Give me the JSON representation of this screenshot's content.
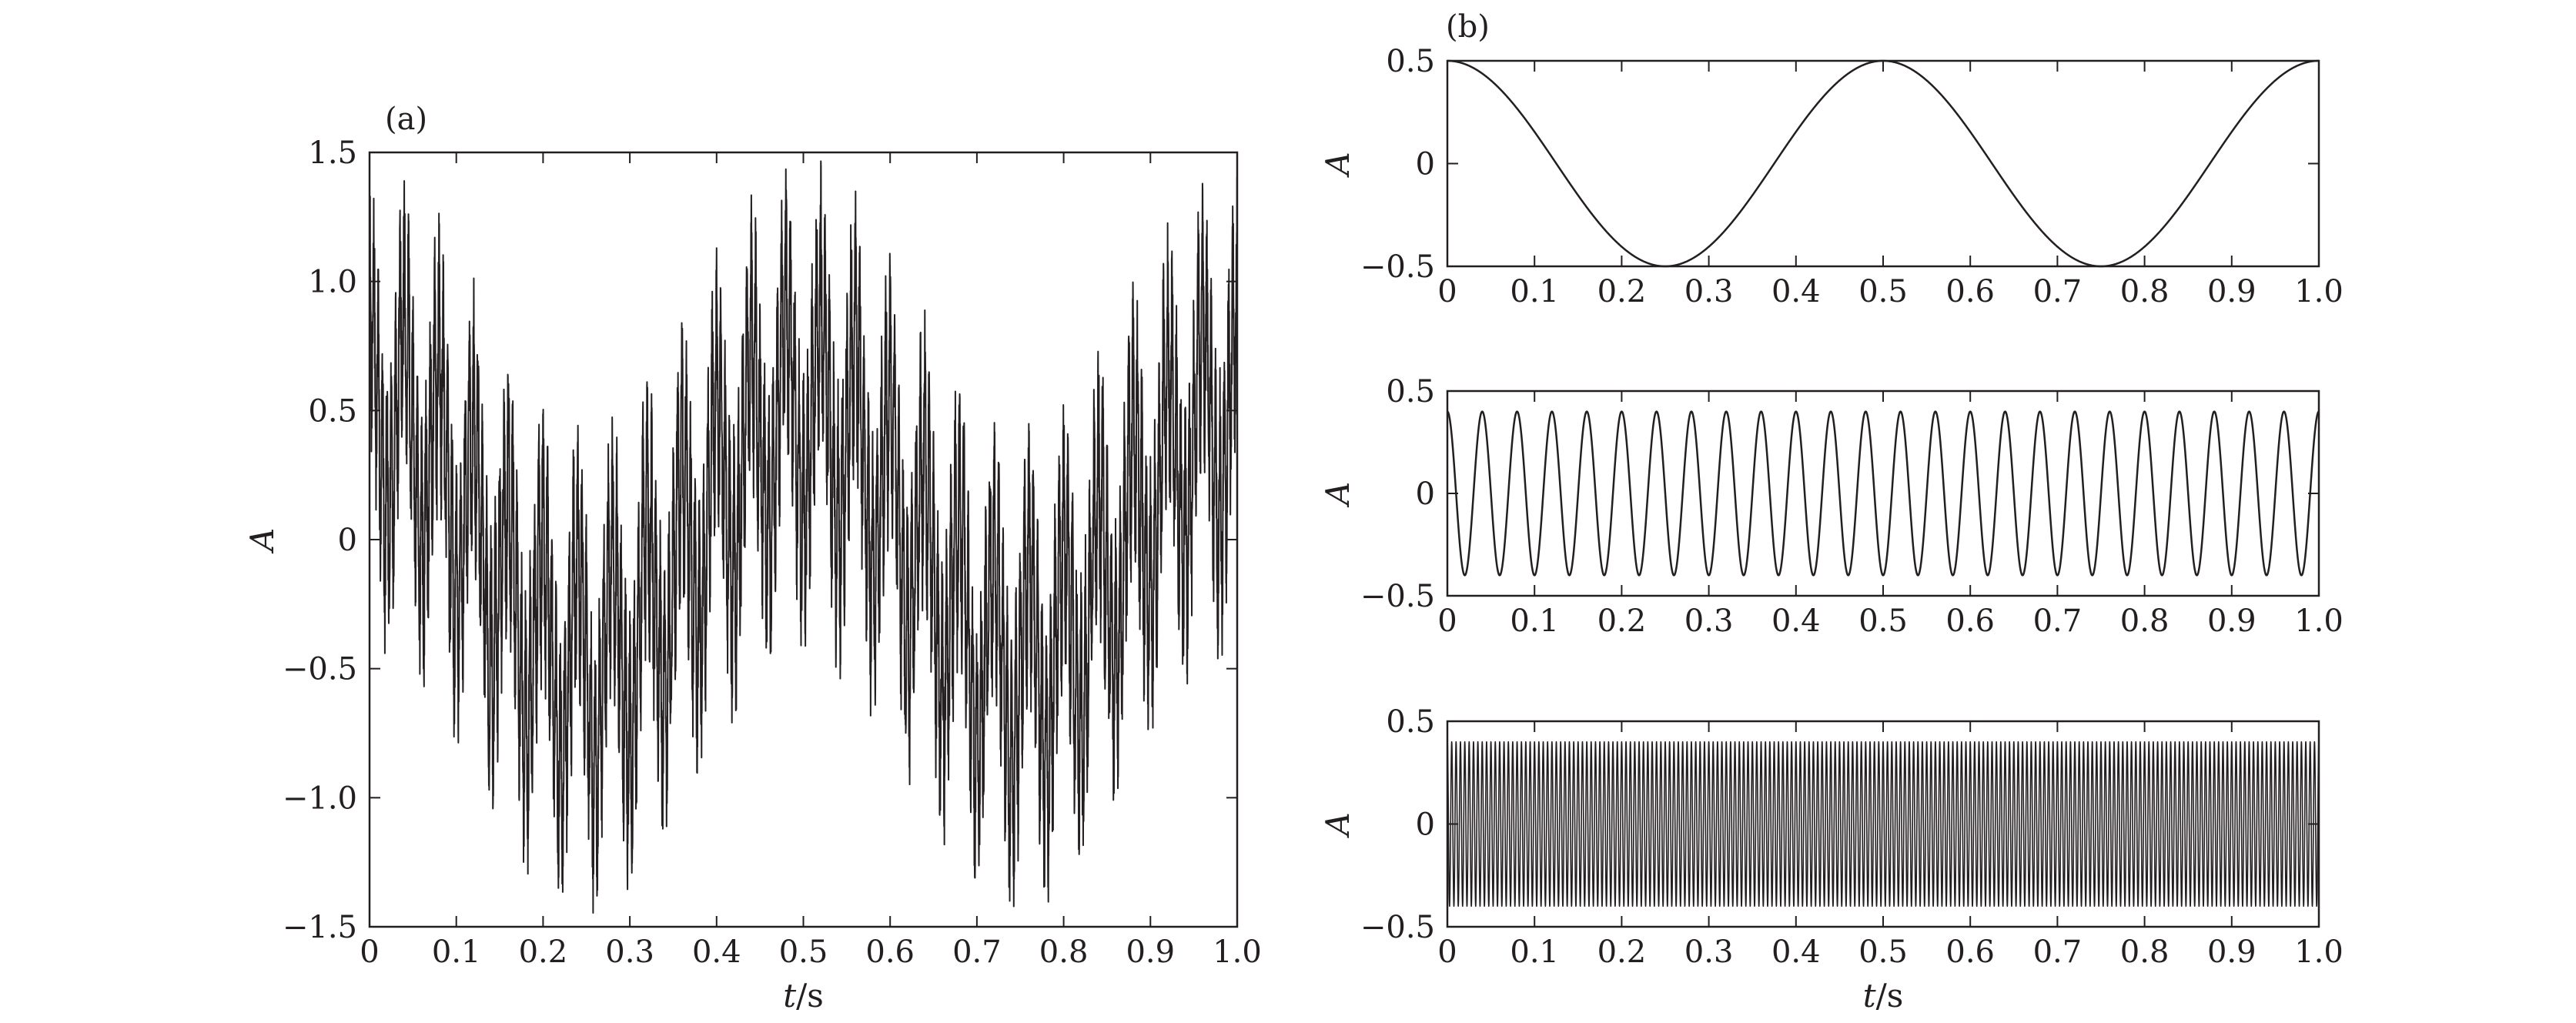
{
  "chart_data": [
    {
      "panel": "(a)",
      "type": "line",
      "title": "",
      "xlabel": "t/s",
      "ylabel": "A",
      "xlim": [
        0,
        1.0
      ],
      "ylim": [
        -1.5,
        1.5
      ],
      "xticks": [
        0,
        0.1,
        0.2,
        0.3,
        0.4,
        0.5,
        0.6,
        0.7,
        0.8,
        0.9,
        1.0
      ],
      "xtick_labels": [
        "0",
        "0.1",
        "0.2",
        "0.3",
        "0.4",
        "0.5",
        "0.6",
        "0.7",
        "0.8",
        "0.9",
        "1.0"
      ],
      "yticks": [
        -1.5,
        -1.0,
        -0.5,
        0,
        0.5,
        1.0,
        1.5
      ],
      "ytick_labels": [
        "−1.5",
        "−1.0",
        "−0.5",
        "0",
        "0.5",
        "1.0",
        "1.5"
      ],
      "grid": false,
      "legend": "none",
      "color": "#231f20",
      "series": [
        {
          "components": [
            {
              "amplitude": 0.5,
              "frequency_hz": 2,
              "waveform": "cos"
            },
            {
              "amplitude": 0.4,
              "frequency_hz": 25,
              "waveform": "cos"
            },
            {
              "amplitude": 0.4,
              "frequency_hz": 200,
              "waveform": "cos"
            }
          ],
          "noise": "visible random noise, amplitude about 0.2",
          "x_range": [
            0,
            1.0
          ]
        }
      ]
    },
    {
      "panel": "(b)",
      "type": "line",
      "title": "",
      "xlabel": "t/s",
      "ylabel": "A",
      "xlim": [
        0,
        1.0
      ],
      "ylim": [
        -0.5,
        0.5
      ],
      "xticks": [
        0,
        0.1,
        0.2,
        0.3,
        0.4,
        0.5,
        0.6,
        0.7,
        0.8,
        0.9,
        1.0
      ],
      "xtick_labels": [
        "0",
        "0.1",
        "0.2",
        "0.3",
        "0.4",
        "0.5",
        "0.6",
        "0.7",
        "0.8",
        "0.9",
        "1.0"
      ],
      "yticks": [
        -0.5,
        0,
        0.5
      ],
      "ytick_labels": [
        "−0.5",
        "0",
        "0.5"
      ],
      "grid": false,
      "legend": "none",
      "color": "#231f20",
      "subplots": [
        {
          "component": {
            "amplitude": 0.5,
            "frequency_hz": 2,
            "waveform": "cos"
          }
        },
        {
          "component": {
            "amplitude": 0.4,
            "frequency_hz": 25,
            "waveform": "cos"
          }
        },
        {
          "component": {
            "amplitude": 0.4,
            "frequency_hz": 200,
            "waveform": "cos"
          }
        }
      ]
    }
  ]
}
